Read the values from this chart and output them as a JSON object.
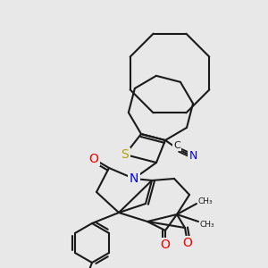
{
  "bg_color": "#e8e8e8",
  "bond_color": "#1a1a1a",
  "bond_width": 1.5,
  "atom_colors": {
    "S": "#b8a000",
    "N": "#0000ee",
    "O": "#ee0000",
    "F": "#ee00ee",
    "C": "#1a1a1a"
  },
  "fig_width": 3.0,
  "fig_height": 3.0,
  "dpi": 100
}
